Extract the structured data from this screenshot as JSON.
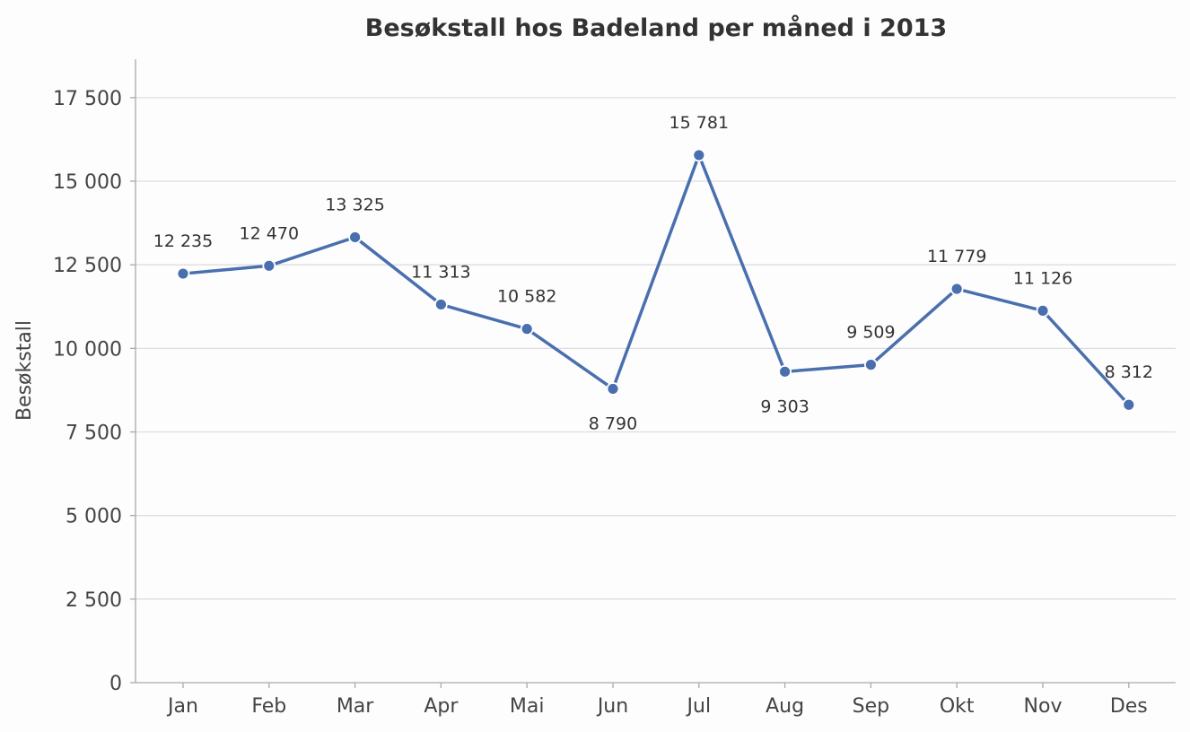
{
  "chart_data": {
    "type": "line",
    "title": "Besøkstall hos Badeland per måned i 2013",
    "xlabel": "",
    "ylabel": "Besøkstall",
    "categories": [
      "Jan",
      "Feb",
      "Mar",
      "Apr",
      "Mai",
      "Jun",
      "Jul",
      "Aug",
      "Sep",
      "Okt",
      "Nov",
      "Des"
    ],
    "series": [
      {
        "values": [
          12235,
          12470,
          13325,
          11313,
          10582,
          8790,
          15781,
          9303,
          9509,
          11779,
          11126,
          8312
        ],
        "value_labels": [
          "12 235",
          "12 470",
          "13 325",
          "11 313",
          "10 582",
          "8 790",
          "15 781",
          "9 303",
          "9 509",
          "11 779",
          "11 126",
          "8 312"
        ],
        "label_position": [
          "above",
          "above",
          "above",
          "above",
          "above",
          "below",
          "above",
          "below",
          "above",
          "above",
          "above",
          "above"
        ],
        "color": "#4a6fae"
      }
    ],
    "ylim": [
      0,
      18650
    ],
    "yticks": [
      0,
      2500,
      5000,
      7500,
      10000,
      12500,
      15000,
      17500
    ],
    "ytick_labels": [
      "0",
      "2 500",
      "5 000",
      "7 500",
      "10 000",
      "12 500",
      "15 000",
      "17 500"
    ],
    "grid": "horizontal",
    "legend": "none"
  }
}
